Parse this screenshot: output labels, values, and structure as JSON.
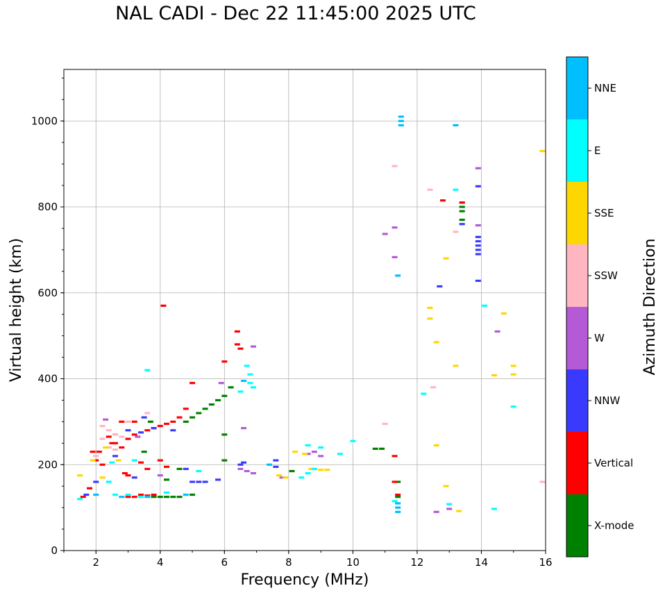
{
  "chart_data": {
    "type": "scatter",
    "title": "NAL CADI - Dec 22 11:45:00 2025 UTC",
    "xlabel": "Frequency (MHz)",
    "ylabel": "Virtual height (km)",
    "xlim": [
      1,
      16
    ],
    "ylim": [
      0,
      1120
    ],
    "xticks": [
      2,
      4,
      6,
      8,
      10,
      12,
      14,
      16
    ],
    "yticks": [
      0,
      200,
      400,
      600,
      800,
      1000
    ],
    "grid": true,
    "colorbar": {
      "label": "Azimuth Direction",
      "categories": [
        {
          "name": "X-mode",
          "color": "#008000"
        },
        {
          "name": "Vertical",
          "color": "#ff0000"
        },
        {
          "name": "NNW",
          "color": "#3a3aff"
        },
        {
          "name": "W",
          "color": "#b45ad6"
        },
        {
          "name": "SSW",
          "color": "#ffb6c1"
        },
        {
          "name": "SSE",
          "color": "#ffd700"
        },
        {
          "name": "E",
          "color": "#00ffff"
        },
        {
          "name": "NNE",
          "color": "#00bfff"
        }
      ]
    },
    "series": [
      {
        "name": "X-mode",
        "points": [
          [
            5.4,
            330
          ],
          [
            5.6,
            340
          ],
          [
            5.8,
            350
          ],
          [
            6.0,
            360
          ],
          [
            6.2,
            380
          ],
          [
            5.2,
            320
          ],
          [
            5.0,
            310
          ],
          [
            4.8,
            300
          ],
          [
            3.8,
            125
          ],
          [
            4.0,
            125
          ],
          [
            4.2,
            125
          ],
          [
            4.4,
            125
          ],
          [
            4.6,
            125
          ],
          [
            5.0,
            130
          ],
          [
            4.2,
            165
          ],
          [
            4.6,
            190
          ],
          [
            6.0,
            270
          ],
          [
            6.0,
            210
          ],
          [
            10.7,
            237
          ],
          [
            10.9,
            237
          ],
          [
            11.4,
            125
          ],
          [
            11.4,
            160
          ],
          [
            13.4,
            770
          ],
          [
            13.4,
            790
          ],
          [
            13.4,
            810
          ],
          [
            13.4,
            800
          ],
          [
            8.1,
            185
          ],
          [
            2.6,
            270
          ],
          [
            3.5,
            230
          ],
          [
            3.7,
            300
          ]
        ]
      },
      {
        "name": "Vertical",
        "points": [
          [
            2.0,
            210
          ],
          [
            2.1,
            230
          ],
          [
            2.5,
            250
          ],
          [
            2.6,
            250
          ],
          [
            3.0,
            260
          ],
          [
            3.2,
            270
          ],
          [
            3.6,
            280
          ],
          [
            3.8,
            285
          ],
          [
            4.0,
            290
          ],
          [
            4.2,
            295
          ],
          [
            3.0,
            125
          ],
          [
            3.2,
            125
          ],
          [
            3.4,
            130
          ],
          [
            3.6,
            128
          ],
          [
            3.8,
            130
          ],
          [
            2.8,
            300
          ],
          [
            3.2,
            300
          ],
          [
            4.4,
            300
          ],
          [
            4.6,
            310
          ],
          [
            4.8,
            330
          ],
          [
            5.0,
            390
          ],
          [
            4.1,
            570
          ],
          [
            6.4,
            510
          ],
          [
            6.4,
            480
          ],
          [
            6.5,
            470
          ],
          [
            6.0,
            440
          ],
          [
            2.8,
            240
          ],
          [
            2.9,
            180
          ],
          [
            3.6,
            190
          ],
          [
            3.4,
            205
          ],
          [
            4.0,
            210
          ],
          [
            4.2,
            195
          ],
          [
            1.8,
            145
          ],
          [
            1.6,
            125
          ],
          [
            2.2,
            200
          ],
          [
            12.8,
            815
          ],
          [
            13.4,
            810
          ],
          [
            11.3,
            220
          ],
          [
            11.4,
            130
          ],
          [
            11.3,
            160
          ],
          [
            3.0,
            175
          ],
          [
            2.4,
            265
          ],
          [
            1.9,
            230
          ]
        ]
      },
      {
        "name": "NNW",
        "points": [
          [
            3.0,
            280
          ],
          [
            3.4,
            275
          ],
          [
            3.8,
            285
          ],
          [
            4.4,
            280
          ],
          [
            5.0,
            160
          ],
          [
            5.2,
            160
          ],
          [
            5.4,
            160
          ],
          [
            5.8,
            165
          ],
          [
            6.5,
            200
          ],
          [
            6.6,
            205
          ],
          [
            7.6,
            195
          ],
          [
            7.6,
            210
          ],
          [
            13.9,
            690
          ],
          [
            13.9,
            700
          ],
          [
            13.9,
            710
          ],
          [
            13.9,
            720
          ],
          [
            13.9,
            730
          ],
          [
            13.4,
            760
          ],
          [
            12.7,
            615
          ],
          [
            13.9,
            628
          ],
          [
            13.9,
            848
          ],
          [
            2.6,
            220
          ],
          [
            3.2,
            170
          ],
          [
            1.7,
            130
          ],
          [
            2.0,
            160
          ],
          [
            4.8,
            190
          ],
          [
            3.5,
            310
          ]
        ]
      },
      {
        "name": "W",
        "points": [
          [
            6.5,
            190
          ],
          [
            6.7,
            185
          ],
          [
            6.9,
            180
          ],
          [
            8.6,
            225
          ],
          [
            8.8,
            230
          ],
          [
            9.0,
            220
          ],
          [
            6.6,
            285
          ],
          [
            6.9,
            475
          ],
          [
            13.9,
            757
          ],
          [
            13.9,
            890
          ],
          [
            11.0,
            737
          ],
          [
            14.5,
            510
          ],
          [
            12.6,
            90
          ],
          [
            13.0,
            97
          ],
          [
            11.3,
            752
          ],
          [
            11.3,
            683
          ],
          [
            3.3,
            265
          ],
          [
            2.3,
            305
          ],
          [
            5.9,
            390
          ],
          [
            4.0,
            175
          ],
          [
            7.8,
            170
          ]
        ]
      },
      {
        "name": "SSW",
        "points": [
          [
            2.2,
            290
          ],
          [
            2.4,
            280
          ],
          [
            2.6,
            270
          ],
          [
            2.8,
            265
          ],
          [
            2.4,
            240
          ],
          [
            2.2,
            260
          ],
          [
            3.0,
            300
          ],
          [
            2.0,
            220
          ],
          [
            11.0,
            295
          ],
          [
            12.4,
            840
          ],
          [
            12.5,
            380
          ],
          [
            15.9,
            160
          ],
          [
            13.2,
            742
          ],
          [
            11.3,
            895
          ],
          [
            2.6,
            235
          ],
          [
            3.6,
            320
          ]
        ]
      },
      {
        "name": "SSE",
        "points": [
          [
            8.2,
            230
          ],
          [
            8.5,
            225
          ],
          [
            8.7,
            190
          ],
          [
            9.0,
            188
          ],
          [
            9.2,
            188
          ],
          [
            7.7,
            175
          ],
          [
            7.9,
            170
          ],
          [
            12.4,
            565
          ],
          [
            12.4,
            540
          ],
          [
            12.6,
            485
          ],
          [
            13.2,
            430
          ],
          [
            14.4,
            408
          ],
          [
            14.7,
            552
          ],
          [
            15.0,
            430
          ],
          [
            15.0,
            410
          ],
          [
            15.9,
            930
          ],
          [
            12.9,
            680
          ],
          [
            12.6,
            245
          ],
          [
            13.3,
            92
          ],
          [
            12.9,
            150
          ],
          [
            1.9,
            210
          ],
          [
            2.3,
            240
          ],
          [
            2.7,
            210
          ],
          [
            1.5,
            175
          ],
          [
            2.2,
            170
          ]
        ]
      },
      {
        "name": "E",
        "points": [
          [
            6.8,
            390
          ],
          [
            6.8,
            410
          ],
          [
            6.7,
            430
          ],
          [
            6.5,
            370
          ],
          [
            6.9,
            380
          ],
          [
            8.4,
            170
          ],
          [
            8.6,
            180
          ],
          [
            8.8,
            190
          ],
          [
            8.6,
            245
          ],
          [
            9.0,
            240
          ],
          [
            9.6,
            225
          ],
          [
            10.0,
            255
          ],
          [
            12.2,
            365
          ],
          [
            14.1,
            570
          ],
          [
            14.4,
            97
          ],
          [
            15.0,
            335
          ],
          [
            13.2,
            840
          ],
          [
            13.0,
            108
          ],
          [
            11.3,
            115
          ],
          [
            2.4,
            160
          ],
          [
            2.6,
            130
          ],
          [
            3.0,
            130
          ],
          [
            3.4,
            125
          ],
          [
            3.6,
            420
          ],
          [
            3.2,
            210
          ],
          [
            2.5,
            205
          ],
          [
            5.2,
            185
          ],
          [
            1.5,
            120
          ],
          [
            4.2,
            135
          ]
        ]
      },
      {
        "name": "NNE",
        "points": [
          [
            11.5,
            1000
          ],
          [
            11.5,
            1010
          ],
          [
            11.5,
            990
          ],
          [
            13.2,
            990
          ],
          [
            11.4,
            640
          ],
          [
            11.4,
            90
          ],
          [
            11.4,
            100
          ],
          [
            11.4,
            110
          ],
          [
            7.4,
            200
          ],
          [
            2.0,
            130
          ],
          [
            2.8,
            125
          ],
          [
            3.6,
            125
          ],
          [
            4.8,
            130
          ],
          [
            6.6,
            395
          ]
        ]
      }
    ]
  }
}
